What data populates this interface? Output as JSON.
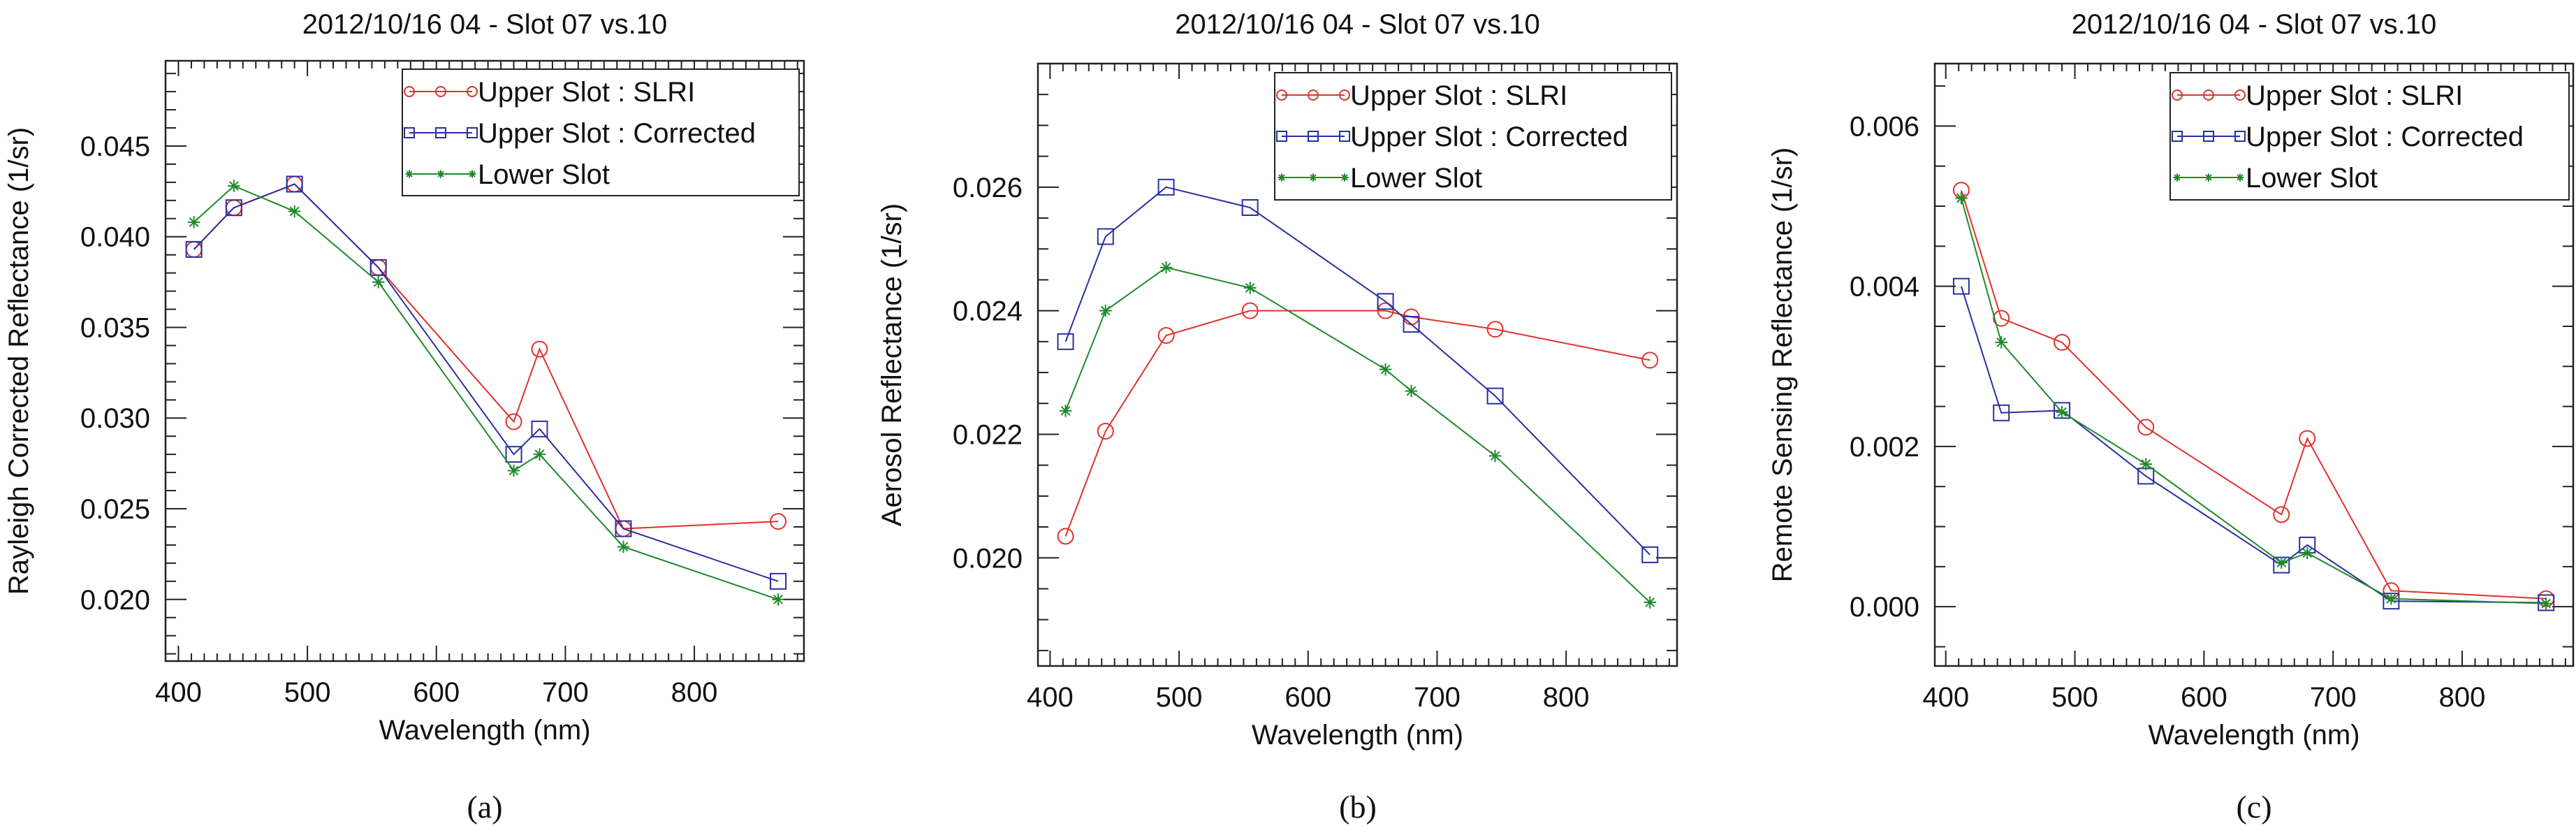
{
  "chart_data": [
    {
      "type": "line",
      "panel_label": "(a)",
      "title": "2012/10/16 04 - Slot 07 vs.10",
      "xlabel": "Wavelength (nm)",
      "ylabel": "Rayleigh Corrected Reflectance (1/sr)",
      "xlim": [
        390,
        885
      ],
      "ylim": [
        0.0166,
        0.0497
      ],
      "xticks": [
        400,
        500,
        600,
        700,
        800
      ],
      "xtick_labels": [
        "400",
        "500",
        "600",
        "700",
        "800"
      ],
      "yticks": [
        0.02,
        0.025,
        0.03,
        0.035,
        0.04,
        0.045
      ],
      "ytick_labels": [
        "0.020",
        "0.025",
        "0.030",
        "0.035",
        "0.040",
        "0.045"
      ],
      "y_minor_step": 0.001,
      "legend_position": "top-right",
      "x": [
        412,
        443,
        490,
        555,
        660,
        680,
        745,
        865
      ],
      "series": [
        {
          "name": "Upper Slot : SLRI",
          "color": "#e0322d",
          "marker": "circle",
          "values": [
            0.0393,
            0.0416,
            0.0429,
            0.0383,
            0.0298,
            0.0338,
            0.0239,
            0.0243
          ]
        },
        {
          "name": "Upper Slot : Corrected",
          "color": "#2a2f9e",
          "marker": "square",
          "values": [
            0.0393,
            0.0416,
            0.0429,
            0.0383,
            0.028,
            0.0294,
            0.0239,
            0.021
          ]
        },
        {
          "name": "Lower Slot",
          "color": "#1f8a2a",
          "marker": "star",
          "values": [
            0.0408,
            0.0428,
            0.0414,
            0.0375,
            0.0271,
            0.028,
            0.0229,
            0.02
          ]
        }
      ]
    },
    {
      "type": "line",
      "panel_label": "(b)",
      "title": "2012/10/16 04 - Slot 07 vs.10",
      "xlabel": "Wavelength (nm)",
      "ylabel": "Aerosol Reflectance (1/sr)",
      "xlim": [
        390.6,
        886
      ],
      "ylim": [
        0.01825,
        0.028
      ],
      "xticks": [
        400,
        500,
        600,
        700,
        800
      ],
      "xtick_labels": [
        "400",
        "500",
        "600",
        "700",
        "800"
      ],
      "yticks": [
        0.02,
        0.022,
        0.024,
        0.026
      ],
      "ytick_labels": [
        "0.020",
        "0.022",
        "0.024",
        "0.026"
      ],
      "y_minor_step": 0.0005,
      "legend_position": "top-right",
      "x": [
        412,
        443,
        490,
        555,
        660,
        680,
        745,
        865
      ],
      "series": [
        {
          "name": "Upper Slot : SLRI",
          "color": "#e0322d",
          "marker": "circle",
          "values": [
            0.02035,
            0.02205,
            0.0236,
            0.024,
            0.024,
            0.0239,
            0.0237,
            0.0232
          ]
        },
        {
          "name": "Upper Slot : Corrected",
          "color": "#2a2f9e",
          "marker": "square",
          "values": [
            0.0235,
            0.0252,
            0.026,
            0.02567,
            0.02415,
            0.02378,
            0.02262,
            0.02005
          ]
        },
        {
          "name": "Lower Slot",
          "color": "#1f8a2a",
          "marker": "star",
          "values": [
            0.02238,
            0.024,
            0.0247,
            0.02437,
            0.02305,
            0.0227,
            0.02165,
            0.01928
          ]
        }
      ]
    },
    {
      "type": "line",
      "panel_label": "(c)",
      "title": "2012/10/16 04 - Slot 07 vs.10",
      "xlabel": "Wavelength (nm)",
      "ylabel": "Remote Sensing Reflectance (1/sr)",
      "xlim": [
        391.5,
        886
      ],
      "ylim": [
        -0.00074,
        0.00678
      ],
      "xticks": [
        400,
        500,
        600,
        700,
        800
      ],
      "xtick_labels": [
        "400",
        "500",
        "600",
        "700",
        "800"
      ],
      "yticks": [
        0.0,
        0.002,
        0.004,
        0.006
      ],
      "ytick_labels": [
        "0.000",
        "0.002",
        "0.004",
        "0.006"
      ],
      "y_minor_step": 0.0005,
      "legend_position": "top-right",
      "x": [
        412,
        443,
        490,
        555,
        660,
        680,
        745,
        865
      ],
      "series": [
        {
          "name": "Upper Slot : SLRI",
          "color": "#e0322d",
          "marker": "circle",
          "values": [
            0.0052,
            0.0036,
            0.0033,
            0.00224,
            0.00115,
            0.0021,
            0.0002,
            0.0001
          ]
        },
        {
          "name": "Upper Slot : Corrected",
          "color": "#2a2f9e",
          "marker": "square",
          "values": [
            0.004,
            0.00242,
            0.00245,
            0.00163,
            0.00052,
            0.00077,
            7e-05,
            5e-05
          ]
        },
        {
          "name": "Lower Slot",
          "color": "#1f8a2a",
          "marker": "star",
          "values": [
            0.0051,
            0.0033,
            0.00243,
            0.00178,
            0.00055,
            0.00067,
            0.0001,
            4e-05
          ]
        }
      ]
    }
  ]
}
